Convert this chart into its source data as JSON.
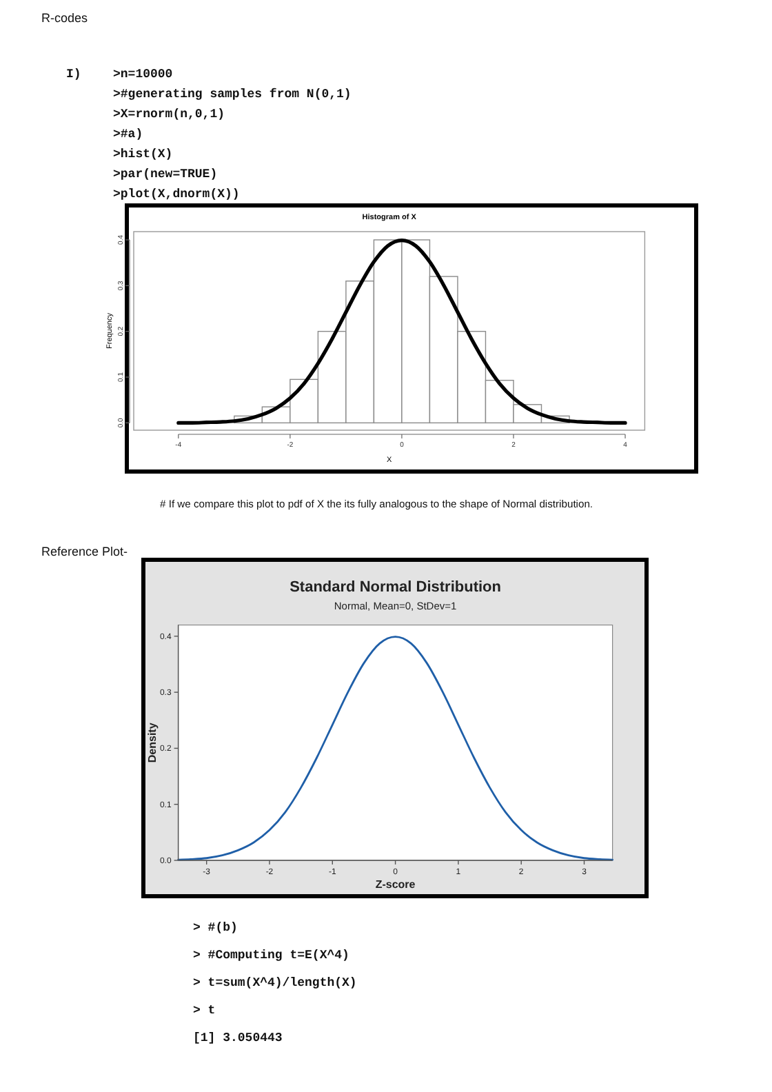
{
  "chart_data": [
    {
      "type": "histogram",
      "title": "Histogram of X",
      "xlabel": "X",
      "ylabel": "Frequency",
      "xlim": [
        -4.8,
        4.35
      ],
      "ylim": [
        -0.016,
        0.418
      ],
      "xticks": [
        -4,
        -2,
        0,
        2,
        4
      ],
      "yticks": [
        {
          "value": 0,
          "label": "0.0"
        },
        {
          "value": 0.1,
          "label": "0.1"
        },
        {
          "value": 0.2,
          "label": "0.2"
        },
        {
          "value": 0.3,
          "label": "0.3"
        },
        {
          "value": 0.4,
          "label": "0.4"
        }
      ],
      "series": [
        {
          "type": "histogram",
          "color": "#ffffff",
          "bins": [
            -3,
            -2.5,
            -2,
            -1.5,
            -1,
            -0.5,
            0,
            0.5,
            1,
            1.5,
            2,
            2.5,
            3
          ],
          "values": [
            0.015,
            0.035,
            0.095,
            0.2,
            0.31,
            0.4,
            0.4,
            0.32,
            0.2,
            0.093,
            0.04,
            0.015
          ]
        },
        {
          "type": "line",
          "color": "#000000",
          "x": [
            -4,
            -3.75,
            -3.5,
            -3.25,
            -3,
            -2.75,
            -2.5,
            -2.25,
            -2,
            -1.75,
            -1.5,
            -1.25,
            -1,
            -0.75,
            -0.5,
            -0.25,
            0,
            0.25,
            0.5,
            0.75,
            1,
            1.25,
            1.5,
            1.75,
            2,
            2.25,
            2.5,
            2.75,
            3,
            3.25,
            3.5,
            3.75,
            4
          ],
          "values": [
            0,
            0,
            0.001,
            0.002,
            0.004,
            0.009,
            0.018,
            0.032,
            0.054,
            0.086,
            0.13,
            0.183,
            0.242,
            0.301,
            0.352,
            0.387,
            0.399,
            0.387,
            0.352,
            0.301,
            0.242,
            0.183,
            0.13,
            0.086,
            0.054,
            0.032,
            0.018,
            0.009,
            0.004,
            0.002,
            0.001,
            0,
            0
          ]
        }
      ],
      "annotations": [
        "R-codes",
        "I)",
        ">n=10000",
        ">#generating samples from N(0,1)",
        ">X=rnorm(n,0,1)",
        ">#a)",
        ">hist(X)",
        ">par(new=TRUE)",
        ">plot(X,dnorm(X))",
        "# If we compare this plot to pdf of X the its fully analogous to the shape of Normal distribution."
      ]
    },
    {
      "type": "line",
      "title": "Standard Normal Distribution",
      "subtitle": "Normal, Mean=0, StDev=1",
      "xlabel": "Z-score",
      "ylabel": "Density",
      "xlim": [
        -3.45,
        3.45
      ],
      "ylim": [
        0,
        0.42
      ],
      "xticks": [
        -3,
        -2,
        -1,
        0,
        1,
        2,
        3
      ],
      "yticks": [
        {
          "value": 0,
          "label": "0.0"
        },
        {
          "value": 0.1,
          "label": "0.1"
        },
        {
          "value": 0.2,
          "label": "0.2"
        },
        {
          "value": 0.3,
          "label": "0.3"
        },
        {
          "value": 0.4,
          "label": "0.4"
        }
      ],
      "color": "#1f5fa8",
      "x": [
        -3.45,
        -3.25,
        -3,
        -2.75,
        -2.5,
        -2.25,
        -2,
        -1.75,
        -1.5,
        -1.25,
        -1,
        -0.75,
        -0.5,
        -0.25,
        0,
        0.25,
        0.5,
        0.75,
        1,
        1.25,
        1.5,
        1.75,
        2,
        2.25,
        2.5,
        2.75,
        3,
        3.25,
        3.45
      ],
      "values": [
        0.001,
        0.002,
        0.004,
        0.009,
        0.018,
        0.032,
        0.054,
        0.086,
        0.13,
        0.183,
        0.242,
        0.301,
        0.352,
        0.387,
        0.399,
        0.387,
        0.352,
        0.301,
        0.242,
        0.183,
        0.13,
        0.086,
        0.054,
        0.032,
        0.018,
        0.009,
        0.004,
        0.002,
        0.001
      ],
      "annotations": [
        "Reference Plot-",
        "> #(b)",
        "> #Computing t=E(X^4)",
        "> t=sum(X^4)/length(X)",
        "> t",
        "[1] 3.050443"
      ]
    }
  ]
}
